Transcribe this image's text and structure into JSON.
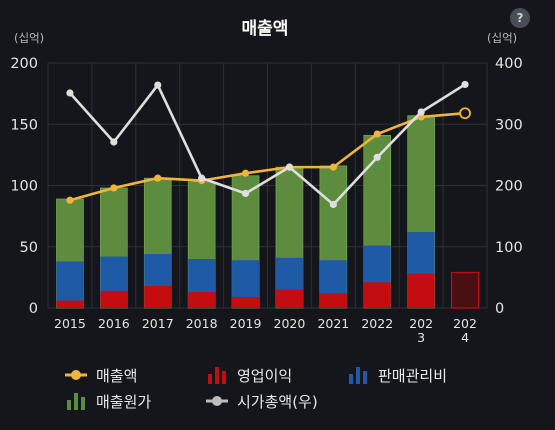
{
  "chart_data": {
    "type": "bar",
    "title": "매출액",
    "left_unit": "(십억)",
    "right_unit": "(십억)",
    "categories": [
      "2015",
      "2016",
      "2017",
      "2018",
      "2019",
      "2020",
      "2021",
      "2022",
      "2023",
      "2024"
    ],
    "category_labels": [
      [
        "2015"
      ],
      [
        "2016"
      ],
      [
        "2017"
      ],
      [
        "2018"
      ],
      [
        "2019"
      ],
      [
        "2020"
      ],
      [
        "2021"
      ],
      [
        "2022"
      ],
      [
        "202",
        "3"
      ],
      [
        "202",
        "4"
      ]
    ],
    "ylim": [
      0,
      200
    ],
    "yticks": [
      "0",
      "50",
      "100",
      "150",
      "200"
    ],
    "y2lim": [
      0,
      400
    ],
    "y2ticks": [
      "0",
      "100",
      "200",
      "300",
      "400"
    ],
    "grid": true,
    "legend_position": "bottom",
    "series": [
      {
        "name": "매출원가",
        "kind": "bar",
        "axis": "left",
        "color": "#5e8c3e",
        "values": [
          89,
          98,
          106,
          103,
          108,
          115,
          116,
          141,
          157,
          null
        ]
      },
      {
        "name": "판매관리비",
        "kind": "bar",
        "axis": "left",
        "color": "#1f5aa6",
        "values": [
          38,
          42,
          44,
          40,
          39,
          41,
          39,
          51,
          62,
          null
        ]
      },
      {
        "name": "영업이익",
        "kind": "bar",
        "axis": "left",
        "color": "#c40d10",
        "values": [
          6,
          14,
          18,
          13,
          9,
          15,
          12,
          21,
          28,
          29
        ]
      },
      {
        "name": "매출액",
        "kind": "line",
        "axis": "left",
        "color": "#f0b43c",
        "values": [
          88,
          98,
          106,
          104,
          110,
          115,
          115,
          142,
          156,
          159
        ]
      },
      {
        "name": "시가총액(우)",
        "kind": "line",
        "axis": "right",
        "color": "#dedede",
        "values": [
          351,
          271,
          364,
          212,
          187,
          230,
          169,
          246,
          320,
          365
        ]
      }
    ]
  },
  "legend": {
    "items": [
      {
        "label": "매출액",
        "icon": "line-dot-icon",
        "color": "#f0b43c"
      },
      {
        "label": "영업이익",
        "icon": "bars-icon",
        "color": "#c40d10"
      },
      {
        "label": "판매관리비",
        "icon": "bars-icon",
        "color": "#1f5aa6"
      },
      {
        "label": "매출원가",
        "icon": "bars-icon",
        "color": "#5e8c3e"
      },
      {
        "label": "시가총액(우)",
        "icon": "line-dot-icon",
        "color": "#bdbdbd"
      }
    ]
  },
  "help_icon": {
    "glyph": "?"
  }
}
